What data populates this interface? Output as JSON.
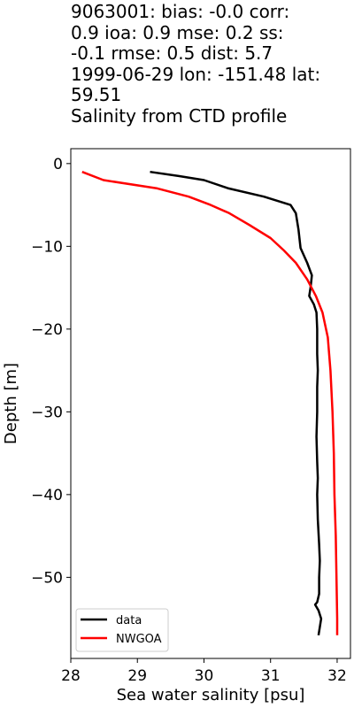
{
  "title": {
    "lines": [
      "9063001: bias: -0.0  corr:",
      "0.9  ioa: 0.9  mse: 0.2  ss:",
      "-0.1  rmse: 0.5  dist: 5.7",
      "1999-06-29 lon: -151.48 lat:",
      "59.51",
      "Salinity from CTD profile"
    ]
  },
  "chart_data": {
    "type": "line",
    "title": "9063001: bias: -0.0  corr: 0.9  ioa: 0.9  mse: 0.2  ss: -0.1  rmse: 0.5  dist: 5.7 1999-06-29 lon: -151.48 lat: 59.51 Salinity from CTD profile",
    "xlabel": "Sea water salinity [psu]",
    "ylabel": "Depth [m]",
    "xlim": [
      28.0,
      32.2
    ],
    "ylim": [
      -59.8,
      1.8
    ],
    "xticks": [
      28,
      29,
      30,
      31,
      32
    ],
    "xtick_labels": [
      "28",
      "29",
      "30",
      "31",
      "32"
    ],
    "yticks": [
      0,
      -10,
      -20,
      -30,
      -40,
      -50
    ],
    "ytick_labels": [
      "0",
      "−10",
      "−20",
      "−30",
      "−40",
      "−50"
    ],
    "grid": false,
    "legend": "lower-left",
    "series": [
      {
        "name": "data",
        "color": "#000000",
        "points": [
          [
            29.19,
            -1
          ],
          [
            29.62,
            -1.5
          ],
          [
            30.0,
            -2
          ],
          [
            30.37,
            -3
          ],
          [
            30.9,
            -4
          ],
          [
            31.3,
            -5
          ],
          [
            31.38,
            -6
          ],
          [
            31.42,
            -8
          ],
          [
            31.45,
            -10.2
          ],
          [
            31.55,
            -12
          ],
          [
            31.62,
            -13.5
          ],
          [
            31.6,
            -15
          ],
          [
            31.58,
            -16
          ],
          [
            31.65,
            -17
          ],
          [
            31.69,
            -18
          ],
          [
            31.7,
            -20
          ],
          [
            31.7,
            -23
          ],
          [
            31.71,
            -25
          ],
          [
            31.7,
            -27
          ],
          [
            31.7,
            -30
          ],
          [
            31.69,
            -33
          ],
          [
            31.7,
            -36
          ],
          [
            31.71,
            -38
          ],
          [
            31.7,
            -40
          ],
          [
            31.71,
            -43
          ],
          [
            31.73,
            -46
          ],
          [
            31.74,
            -48
          ],
          [
            31.73,
            -50
          ],
          [
            31.73,
            -52
          ],
          [
            31.7,
            -53
          ],
          [
            31.67,
            -53.3
          ],
          [
            31.72,
            -54
          ],
          [
            31.76,
            -55
          ],
          [
            31.74,
            -56
          ],
          [
            31.72,
            -57
          ]
        ]
      },
      {
        "name": "NWGOA",
        "color": "#ff0000",
        "points": [
          [
            28.17,
            -1
          ],
          [
            28.49,
            -2
          ],
          [
            29.3,
            -3
          ],
          [
            29.77,
            -4
          ],
          [
            30.1,
            -5
          ],
          [
            30.38,
            -6
          ],
          [
            30.7,
            -7.5
          ],
          [
            31.0,
            -9
          ],
          [
            31.2,
            -10.5
          ],
          [
            31.38,
            -12
          ],
          [
            31.55,
            -14
          ],
          [
            31.68,
            -16
          ],
          [
            31.78,
            -18
          ],
          [
            31.86,
            -21
          ],
          [
            31.9,
            -25
          ],
          [
            31.93,
            -30
          ],
          [
            31.95,
            -35
          ],
          [
            31.96,
            -40
          ],
          [
            31.98,
            -45
          ],
          [
            31.99,
            -50
          ],
          [
            32.0,
            -55
          ],
          [
            32.0,
            -57
          ]
        ]
      }
    ]
  }
}
